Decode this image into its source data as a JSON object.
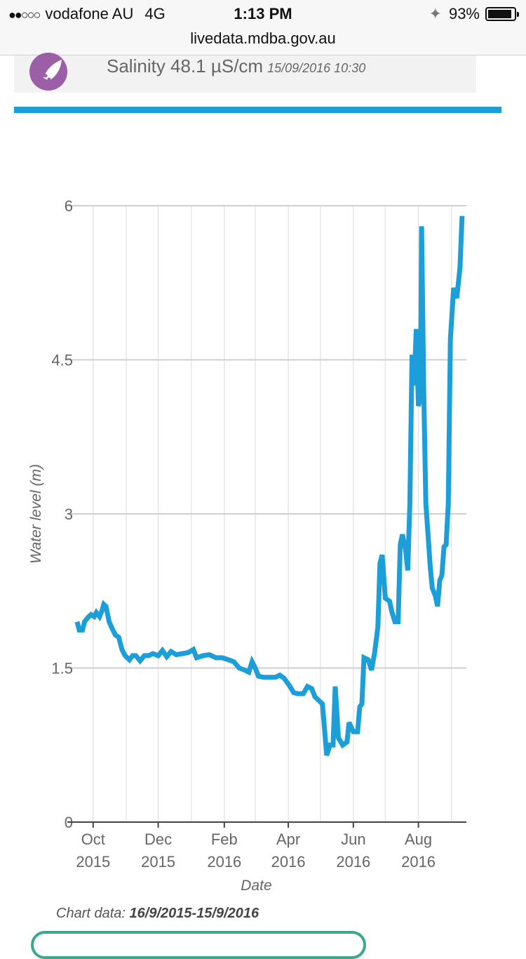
{
  "status_bar": {
    "signal": "●●○○○",
    "carrier": "vodafone AU",
    "network": "4G",
    "time": "1:13 PM",
    "bluetooth_icon": "bluetooth-icon",
    "battery_percent": "93%",
    "battery_level": 0.93
  },
  "browser": {
    "url": "livedata.mdba.gov.au"
  },
  "salinity": {
    "icon": "salinity-drop-icon",
    "label": "Salinity 48.1 µS/cm",
    "date": "15/09/2016 10:30"
  },
  "colors": {
    "accent": "#1c9fd8",
    "line": "#1c9fd8",
    "salinity_icon": "#9a5fa6",
    "button_border": "#3aa88a"
  },
  "chart_data": {
    "type": "line",
    "xlabel": "Date",
    "ylabel": "Water level (m)",
    "ylim": [
      0,
      6
    ],
    "xlim": [
      "2015-09-16",
      "2016-09-15"
    ],
    "grid": true,
    "y_ticks": [
      "0",
      "1.5",
      "3",
      "4.5",
      "6"
    ],
    "x_ticks": [
      {
        "date": "2015-10-01",
        "label": [
          "Oct",
          "2015"
        ]
      },
      {
        "date": "2015-12-01",
        "label": [
          "Dec",
          "2015"
        ]
      },
      {
        "date": "2016-02-01",
        "label": [
          "Feb",
          "2016"
        ]
      },
      {
        "date": "2016-04-01",
        "label": [
          "Apr",
          "2016"
        ]
      },
      {
        "date": "2016-06-01",
        "label": [
          "Jun",
          "2016"
        ]
      },
      {
        "date": "2016-08-01",
        "label": [
          "Aug",
          "2016"
        ]
      }
    ],
    "series": [
      {
        "points": [
          [
            "2015-09-16",
            1.95
          ],
          [
            "2015-09-18",
            1.87
          ],
          [
            "2015-09-21",
            1.87
          ],
          [
            "2015-09-23",
            1.95
          ],
          [
            "2015-09-26",
            1.99
          ],
          [
            "2015-09-29",
            2.02
          ],
          [
            "2015-10-02",
            2.0
          ],
          [
            "2015-10-04",
            2.04
          ],
          [
            "2015-10-07",
            2.0
          ],
          [
            "2015-10-09",
            2.05
          ],
          [
            "2015-10-11",
            2.12
          ],
          [
            "2015-10-13",
            2.1
          ],
          [
            "2015-10-16",
            1.95
          ],
          [
            "2015-10-19",
            1.88
          ],
          [
            "2015-10-22",
            1.82
          ],
          [
            "2015-10-25",
            1.8
          ],
          [
            "2015-10-28",
            1.68
          ],
          [
            "2015-10-31",
            1.62
          ],
          [
            "2015-11-04",
            1.58
          ],
          [
            "2015-11-07",
            1.62
          ],
          [
            "2015-11-10",
            1.62
          ],
          [
            "2015-11-14",
            1.57
          ],
          [
            "2015-11-18",
            1.62
          ],
          [
            "2015-11-22",
            1.62
          ],
          [
            "2015-11-26",
            1.64
          ],
          [
            "2015-12-01",
            1.62
          ],
          [
            "2015-12-05",
            1.67
          ],
          [
            "2015-12-09",
            1.61
          ],
          [
            "2015-12-13",
            1.66
          ],
          [
            "2015-12-18",
            1.63
          ],
          [
            "2015-12-24",
            1.64
          ],
          [
            "2015-12-29",
            1.65
          ],
          [
            "2016-01-03",
            1.68
          ],
          [
            "2016-01-06",
            1.6
          ],
          [
            "2016-01-12",
            1.62
          ],
          [
            "2016-01-18",
            1.63
          ],
          [
            "2016-01-24",
            1.6
          ],
          [
            "2016-01-30",
            1.6
          ],
          [
            "2016-02-05",
            1.58
          ],
          [
            "2016-02-10",
            1.56
          ],
          [
            "2016-02-15",
            1.5
          ],
          [
            "2016-02-20",
            1.48
          ],
          [
            "2016-02-24",
            1.46
          ],
          [
            "2016-02-27",
            1.56
          ],
          [
            "2016-03-01",
            1.5
          ],
          [
            "2016-03-04",
            1.42
          ],
          [
            "2016-03-09",
            1.41
          ],
          [
            "2016-03-15",
            1.41
          ],
          [
            "2016-03-20",
            1.41
          ],
          [
            "2016-03-24",
            1.43
          ],
          [
            "2016-03-28",
            1.4
          ],
          [
            "2016-04-02",
            1.33
          ],
          [
            "2016-04-06",
            1.26
          ],
          [
            "2016-04-10",
            1.25
          ],
          [
            "2016-04-15",
            1.25
          ],
          [
            "2016-04-19",
            1.32
          ],
          [
            "2016-04-23",
            1.3
          ],
          [
            "2016-04-26",
            1.22
          ],
          [
            "2016-04-30",
            1.18
          ],
          [
            "2016-05-03",
            1.15
          ],
          [
            "2016-05-05",
            0.9
          ],
          [
            "2016-05-07",
            0.65
          ],
          [
            "2016-05-10",
            0.75
          ],
          [
            "2016-05-13",
            0.75
          ],
          [
            "2016-05-15",
            1.32
          ],
          [
            "2016-05-18",
            0.82
          ],
          [
            "2016-05-22",
            0.75
          ],
          [
            "2016-05-26",
            0.78
          ],
          [
            "2016-05-28",
            0.97
          ],
          [
            "2016-06-01",
            0.88
          ],
          [
            "2016-06-05",
            0.88
          ],
          [
            "2016-06-07",
            1.12
          ],
          [
            "2016-06-09",
            1.15
          ],
          [
            "2016-06-11",
            1.6
          ],
          [
            "2016-06-15",
            1.58
          ],
          [
            "2016-06-18",
            1.48
          ],
          [
            "2016-06-21",
            1.65
          ],
          [
            "2016-06-24",
            1.9
          ],
          [
            "2016-06-26",
            2.52
          ],
          [
            "2016-06-28",
            2.6
          ],
          [
            "2016-07-01",
            2.18
          ],
          [
            "2016-07-05",
            2.15
          ],
          [
            "2016-07-07",
            2.05
          ],
          [
            "2016-07-10",
            1.95
          ],
          [
            "2016-07-13",
            1.95
          ],
          [
            "2016-07-15",
            2.7
          ],
          [
            "2016-07-17",
            2.8
          ],
          [
            "2016-07-20",
            2.65
          ],
          [
            "2016-07-22",
            2.45
          ],
          [
            "2016-07-24",
            3.1
          ],
          [
            "2016-07-26",
            4.55
          ],
          [
            "2016-07-28",
            4.25
          ],
          [
            "2016-07-30",
            4.8
          ],
          [
            "2016-08-01",
            4.05
          ],
          [
            "2016-08-03",
            4.15
          ],
          [
            "2016-08-04",
            5.8
          ],
          [
            "2016-08-06",
            4.2
          ],
          [
            "2016-08-08",
            3.1
          ],
          [
            "2016-08-10",
            2.8
          ],
          [
            "2016-08-12",
            2.5
          ],
          [
            "2016-08-14",
            2.28
          ],
          [
            "2016-08-17",
            2.2
          ],
          [
            "2016-08-19",
            2.1
          ],
          [
            "2016-08-21",
            2.35
          ],
          [
            "2016-08-23",
            2.4
          ],
          [
            "2016-08-25",
            2.68
          ],
          [
            "2016-08-27",
            2.7
          ],
          [
            "2016-08-29",
            3.1
          ],
          [
            "2016-08-31",
            4.7
          ],
          [
            "2016-09-03",
            5.2
          ],
          [
            "2016-09-06",
            5.1
          ],
          [
            "2016-09-09",
            5.4
          ],
          [
            "2016-09-11",
            5.9
          ]
        ]
      }
    ]
  },
  "footer": {
    "chart_data_label": "Chart data:",
    "chart_data_range": "16/9/2015-15/9/2016"
  }
}
